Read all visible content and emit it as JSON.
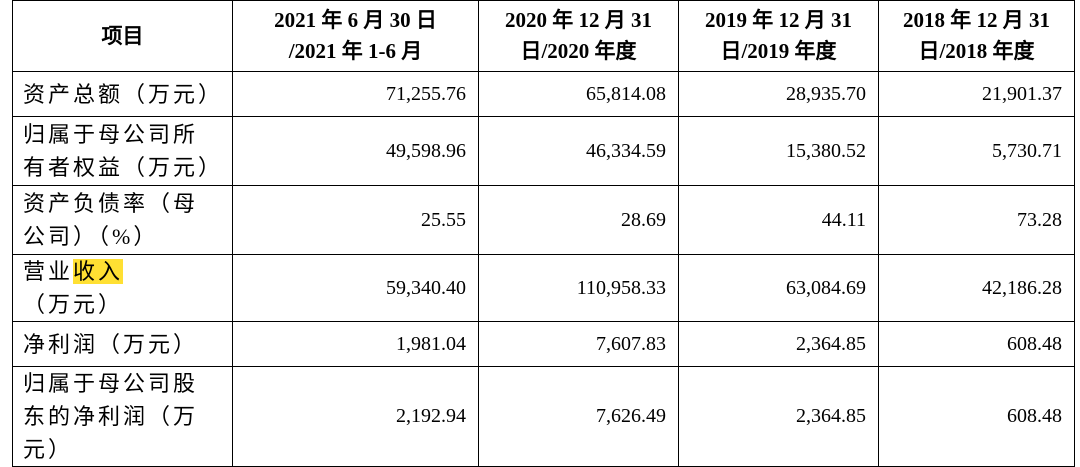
{
  "table": {
    "header": [
      [
        "项目"
      ],
      [
        "2021 年 6 月 30 日",
        "/2021 年 1-6 月"
      ],
      [
        "2020 年 12 月 31",
        "日/2020 年度"
      ],
      [
        "2019 年 12 月 31",
        "日/2019 年度"
      ],
      [
        "2018 年 12 月 31",
        "日/2018 年度"
      ]
    ],
    "rows": [
      [
        [
          "资产总额（万元）"
        ],
        "71,255.76",
        "65,814.08",
        "28,935.70",
        "21,901.37"
      ],
      [
        [
          "归属于母公司所有者权益（万元）"
        ],
        "49,598.96",
        "46,334.59",
        "15,380.52",
        "5,730.71"
      ],
      [
        [
          "资产负债率（母公司）（%）"
        ],
        "25.55",
        "28.69",
        "44.11",
        "73.28"
      ],
      [
        [
          "营业",
          {
            "text": "收入",
            "highlight": true
          },
          "（万元）"
        ],
        "59,340.40",
        "110,958.33",
        "63,084.69",
        "42,186.28"
      ],
      [
        [
          "净利润（万元）"
        ],
        "1,981.04",
        "7,607.83",
        "2,364.85",
        "608.48"
      ],
      [
        [
          "归属于母公司股东的净利润（万元）"
        ],
        "2,192.94",
        "7,626.49",
        "2,364.85",
        "608.48"
      ]
    ]
  }
}
